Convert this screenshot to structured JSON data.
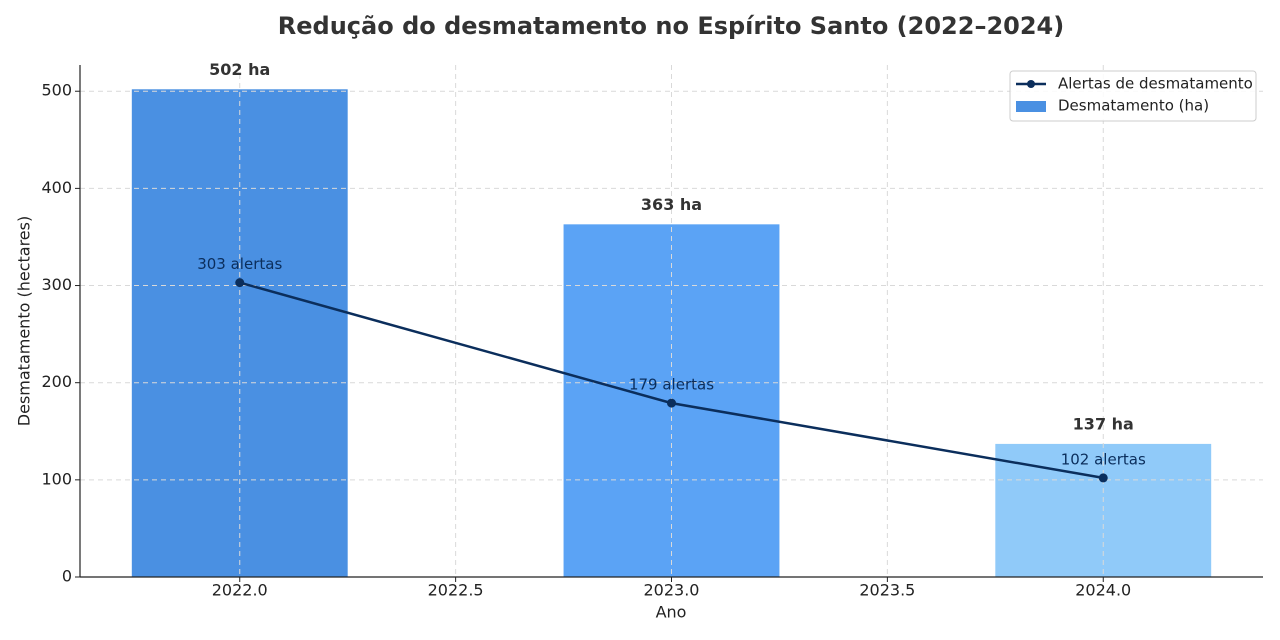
{
  "chart_data": {
    "type": "bar",
    "title": "Redução do desmatamento no Espírito Santo (2022–2024)",
    "x_label": "Ano",
    "y_label": "Desmatamento (hectares)",
    "x": [
      2022,
      2023,
      2024
    ],
    "series": [
      {
        "name": "Desmatamento (ha)",
        "type": "bar",
        "color": "#4a90e2",
        "colors": [
          "#4a90e2",
          "#5ba3f5",
          "#90caf9"
        ],
        "values": [
          502,
          363,
          137
        ],
        "value_labels": [
          "502 ha",
          "363 ha",
          "137 ha"
        ]
      },
      {
        "name": "Alertas de desmatamento",
        "type": "line",
        "color": "#0b2e5c",
        "values": [
          303,
          179,
          102
        ],
        "value_labels": [
          "303 alertas",
          "179 alertas",
          "102 alertas"
        ]
      }
    ],
    "xlim": [
      2021.63,
      2024.37
    ],
    "xticks": [
      {
        "value": 2022,
        "label": "2022.0"
      },
      {
        "value": 2022.5,
        "label": "2022.5"
      },
      {
        "value": 2023,
        "label": "2023.0"
      },
      {
        "value": 2023.5,
        "label": "2023.5"
      },
      {
        "value": 2024,
        "label": "2024.0"
      }
    ],
    "ylim": [
      0,
      527
    ],
    "yticks": [
      0,
      100,
      200,
      300,
      400,
      500
    ],
    "grid": true,
    "legend": "upper right"
  }
}
